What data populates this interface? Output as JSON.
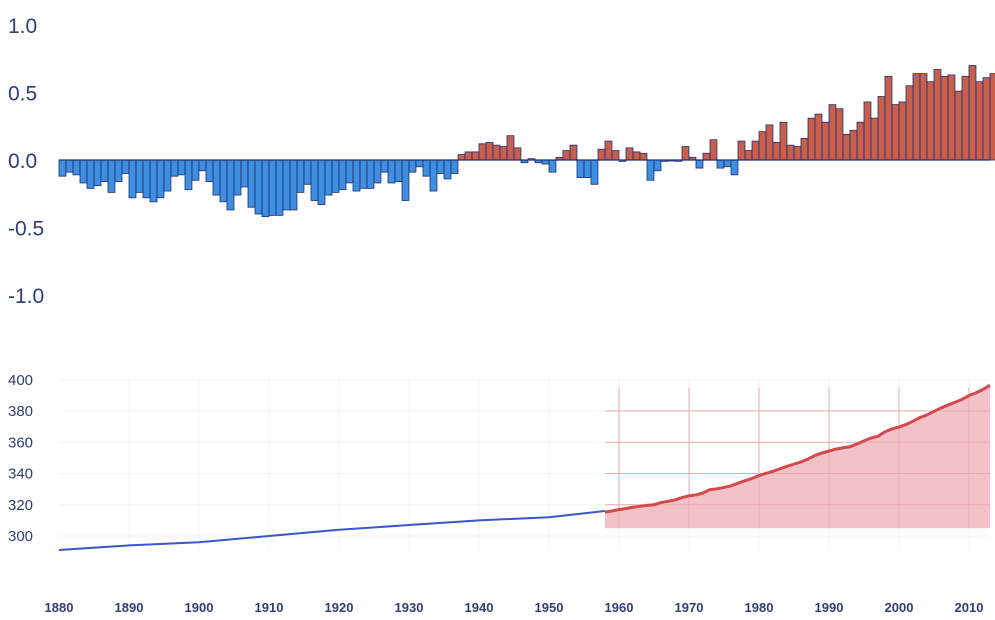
{
  "chart_data": [
    {
      "type": "bar",
      "series": [
        {
          "x": [
            1880,
            1881,
            1882,
            1883,
            1884,
            1885,
            1886,
            1887,
            1888,
            1889,
            1890,
            1891,
            1892,
            1893,
            1894,
            1895,
            1896,
            1897,
            1898,
            1899,
            1900,
            1901,
            1902,
            1903,
            1904,
            1905,
            1906,
            1907,
            1908,
            1909,
            1910,
            1911,
            1912,
            1913,
            1914,
            1915,
            1916,
            1917,
            1918,
            1919,
            1920,
            1921,
            1922,
            1923,
            1924,
            1925,
            1926,
            1927,
            1928,
            1929,
            1930,
            1931,
            1932,
            1933,
            1934,
            1935,
            1936,
            1937,
            1938,
            1939,
            1940,
            1941,
            1942,
            1943,
            1944,
            1945,
            1946,
            1947,
            1948,
            1949,
            1950,
            1951,
            1952,
            1953,
            1954,
            1955,
            1956,
            1957,
            1958,
            1959,
            1960,
            1961,
            1962,
            1963,
            1964,
            1965,
            1966,
            1967,
            1968,
            1969,
            1970,
            1971,
            1972,
            1973,
            1974,
            1975,
            1976,
            1977,
            1978,
            1979,
            1980,
            1981,
            1982,
            1983,
            1984,
            1985,
            1986,
            1987,
            1988,
            1989,
            1990,
            1991,
            1992,
            1993,
            1994,
            1995,
            1996,
            1997,
            1998,
            1999,
            2000,
            2001,
            2002,
            2003,
            2004,
            2005,
            2006,
            2007,
            2008,
            2009,
            2010,
            2011,
            2012,
            2013
          ],
          "values": [
            -0.12,
            -0.09,
            -0.11,
            -0.17,
            -0.21,
            -0.19,
            -0.16,
            -0.24,
            -0.16,
            -0.1,
            -0.28,
            -0.24,
            -0.28,
            -0.31,
            -0.28,
            -0.23,
            -0.12,
            -0.11,
            -0.22,
            -0.15,
            -0.08,
            -0.16,
            -0.26,
            -0.31,
            -0.37,
            -0.26,
            -0.2,
            -0.35,
            -0.4,
            -0.42,
            -0.41,
            -0.41,
            -0.37,
            -0.37,
            -0.24,
            -0.18,
            -0.3,
            -0.33,
            -0.26,
            -0.24,
            -0.22,
            -0.17,
            -0.23,
            -0.21,
            -0.21,
            -0.17,
            -0.09,
            -0.17,
            -0.16,
            -0.3,
            -0.09,
            -0.05,
            -0.12,
            -0.23,
            -0.1,
            -0.14,
            -0.1,
            0.04,
            0.06,
            0.06,
            0.12,
            0.13,
            0.11,
            0.1,
            0.18,
            0.09,
            -0.02,
            0.01,
            -0.02,
            -0.03,
            -0.09,
            0.02,
            0.07,
            0.11,
            -0.13,
            -0.13,
            -0.18,
            0.08,
            0.14,
            0.07,
            -0.01,
            0.09,
            0.06,
            0.05,
            -0.15,
            -0.08,
            -0.01,
            0.0,
            -0.01,
            0.1,
            0.02,
            -0.06,
            0.05,
            0.15,
            -0.06,
            -0.05,
            -0.11,
            0.14,
            0.07,
            0.14,
            0.21,
            0.26,
            0.13,
            0.28,
            0.11,
            0.1,
            0.16,
            0.31,
            0.34,
            0.28,
            0.41,
            0.38,
            0.19,
            0.22,
            0.28,
            0.43,
            0.31,
            0.47,
            0.62,
            0.41,
            0.43,
            0.55,
            0.64,
            0.64,
            0.58,
            0.67,
            0.62,
            0.63,
            0.51,
            0.62,
            0.7,
            0.58,
            0.61,
            0.64
          ]
        }
      ],
      "ylim": [
        -1.0,
        1.0
      ],
      "y_ticks": [
        "1.0",
        "0.5",
        "0.0",
        "-0.5",
        "-1.0"
      ],
      "bar_colors": {
        "negative": "#3f8fe0",
        "positive": "#c85f4d",
        "outline": "#1f2f70"
      },
      "title": "",
      "xlabel": "",
      "ylabel": ""
    },
    {
      "type": "line",
      "series": [
        {
          "x": [
            1880,
            1890,
            1900,
            1910,
            1920,
            1930,
            1940,
            1950,
            1958
          ],
          "values": [
            291,
            294,
            296,
            300,
            304,
            307,
            310,
            312,
            316
          ],
          "color": "#3c57c8"
        },
        {
          "x": [
            1958,
            1959,
            1960,
            1961,
            1962,
            1963,
            1964,
            1965,
            1966,
            1967,
            1968,
            1969,
            1970,
            1971,
            1972,
            1973,
            1974,
            1975,
            1976,
            1977,
            1978,
            1979,
            1980,
            1981,
            1982,
            1983,
            1984,
            1985,
            1986,
            1987,
            1988,
            1989,
            1990,
            1991,
            1992,
            1993,
            1994,
            1995,
            1996,
            1997,
            1998,
            1999,
            2000,
            2001,
            2002,
            2003,
            2004,
            2005,
            2006,
            2007,
            2008,
            2009,
            2010,
            2011,
            2012,
            2013
          ],
          "values": [
            315.3,
            316.0,
            316.9,
            317.6,
            318.4,
            319.0,
            319.6,
            320.0,
            321.4,
            322.2,
            323.1,
            324.6,
            325.7,
            326.3,
            327.5,
            329.7,
            330.2,
            331.1,
            332.1,
            333.8,
            335.4,
            336.8,
            338.7,
            340.1,
            341.4,
            343.0,
            344.6,
            346.0,
            347.4,
            349.2,
            351.6,
            353.1,
            354.4,
            355.6,
            356.5,
            357.1,
            358.9,
            360.9,
            362.7,
            363.8,
            366.7,
            368.5,
            369.7,
            371.3,
            373.5,
            375.8,
            377.5,
            379.8,
            381.9,
            383.8,
            385.6,
            387.4,
            389.9,
            391.6,
            393.8,
            396.5
          ],
          "color": "#d4494c",
          "fill": "#f3c2c8"
        }
      ],
      "ylim": [
        280,
        405
      ],
      "y_ticks": [
        "400",
        "380",
        "360",
        "340",
        "320",
        "300"
      ],
      "title": "",
      "xlabel": "",
      "ylabel": ""
    }
  ],
  "x_ticks": [
    "1880",
    "1890",
    "1900",
    "1910",
    "1920",
    "1930",
    "1940",
    "1950",
    "1960",
    "1970",
    "1980",
    "1990",
    "2000",
    "2010"
  ]
}
